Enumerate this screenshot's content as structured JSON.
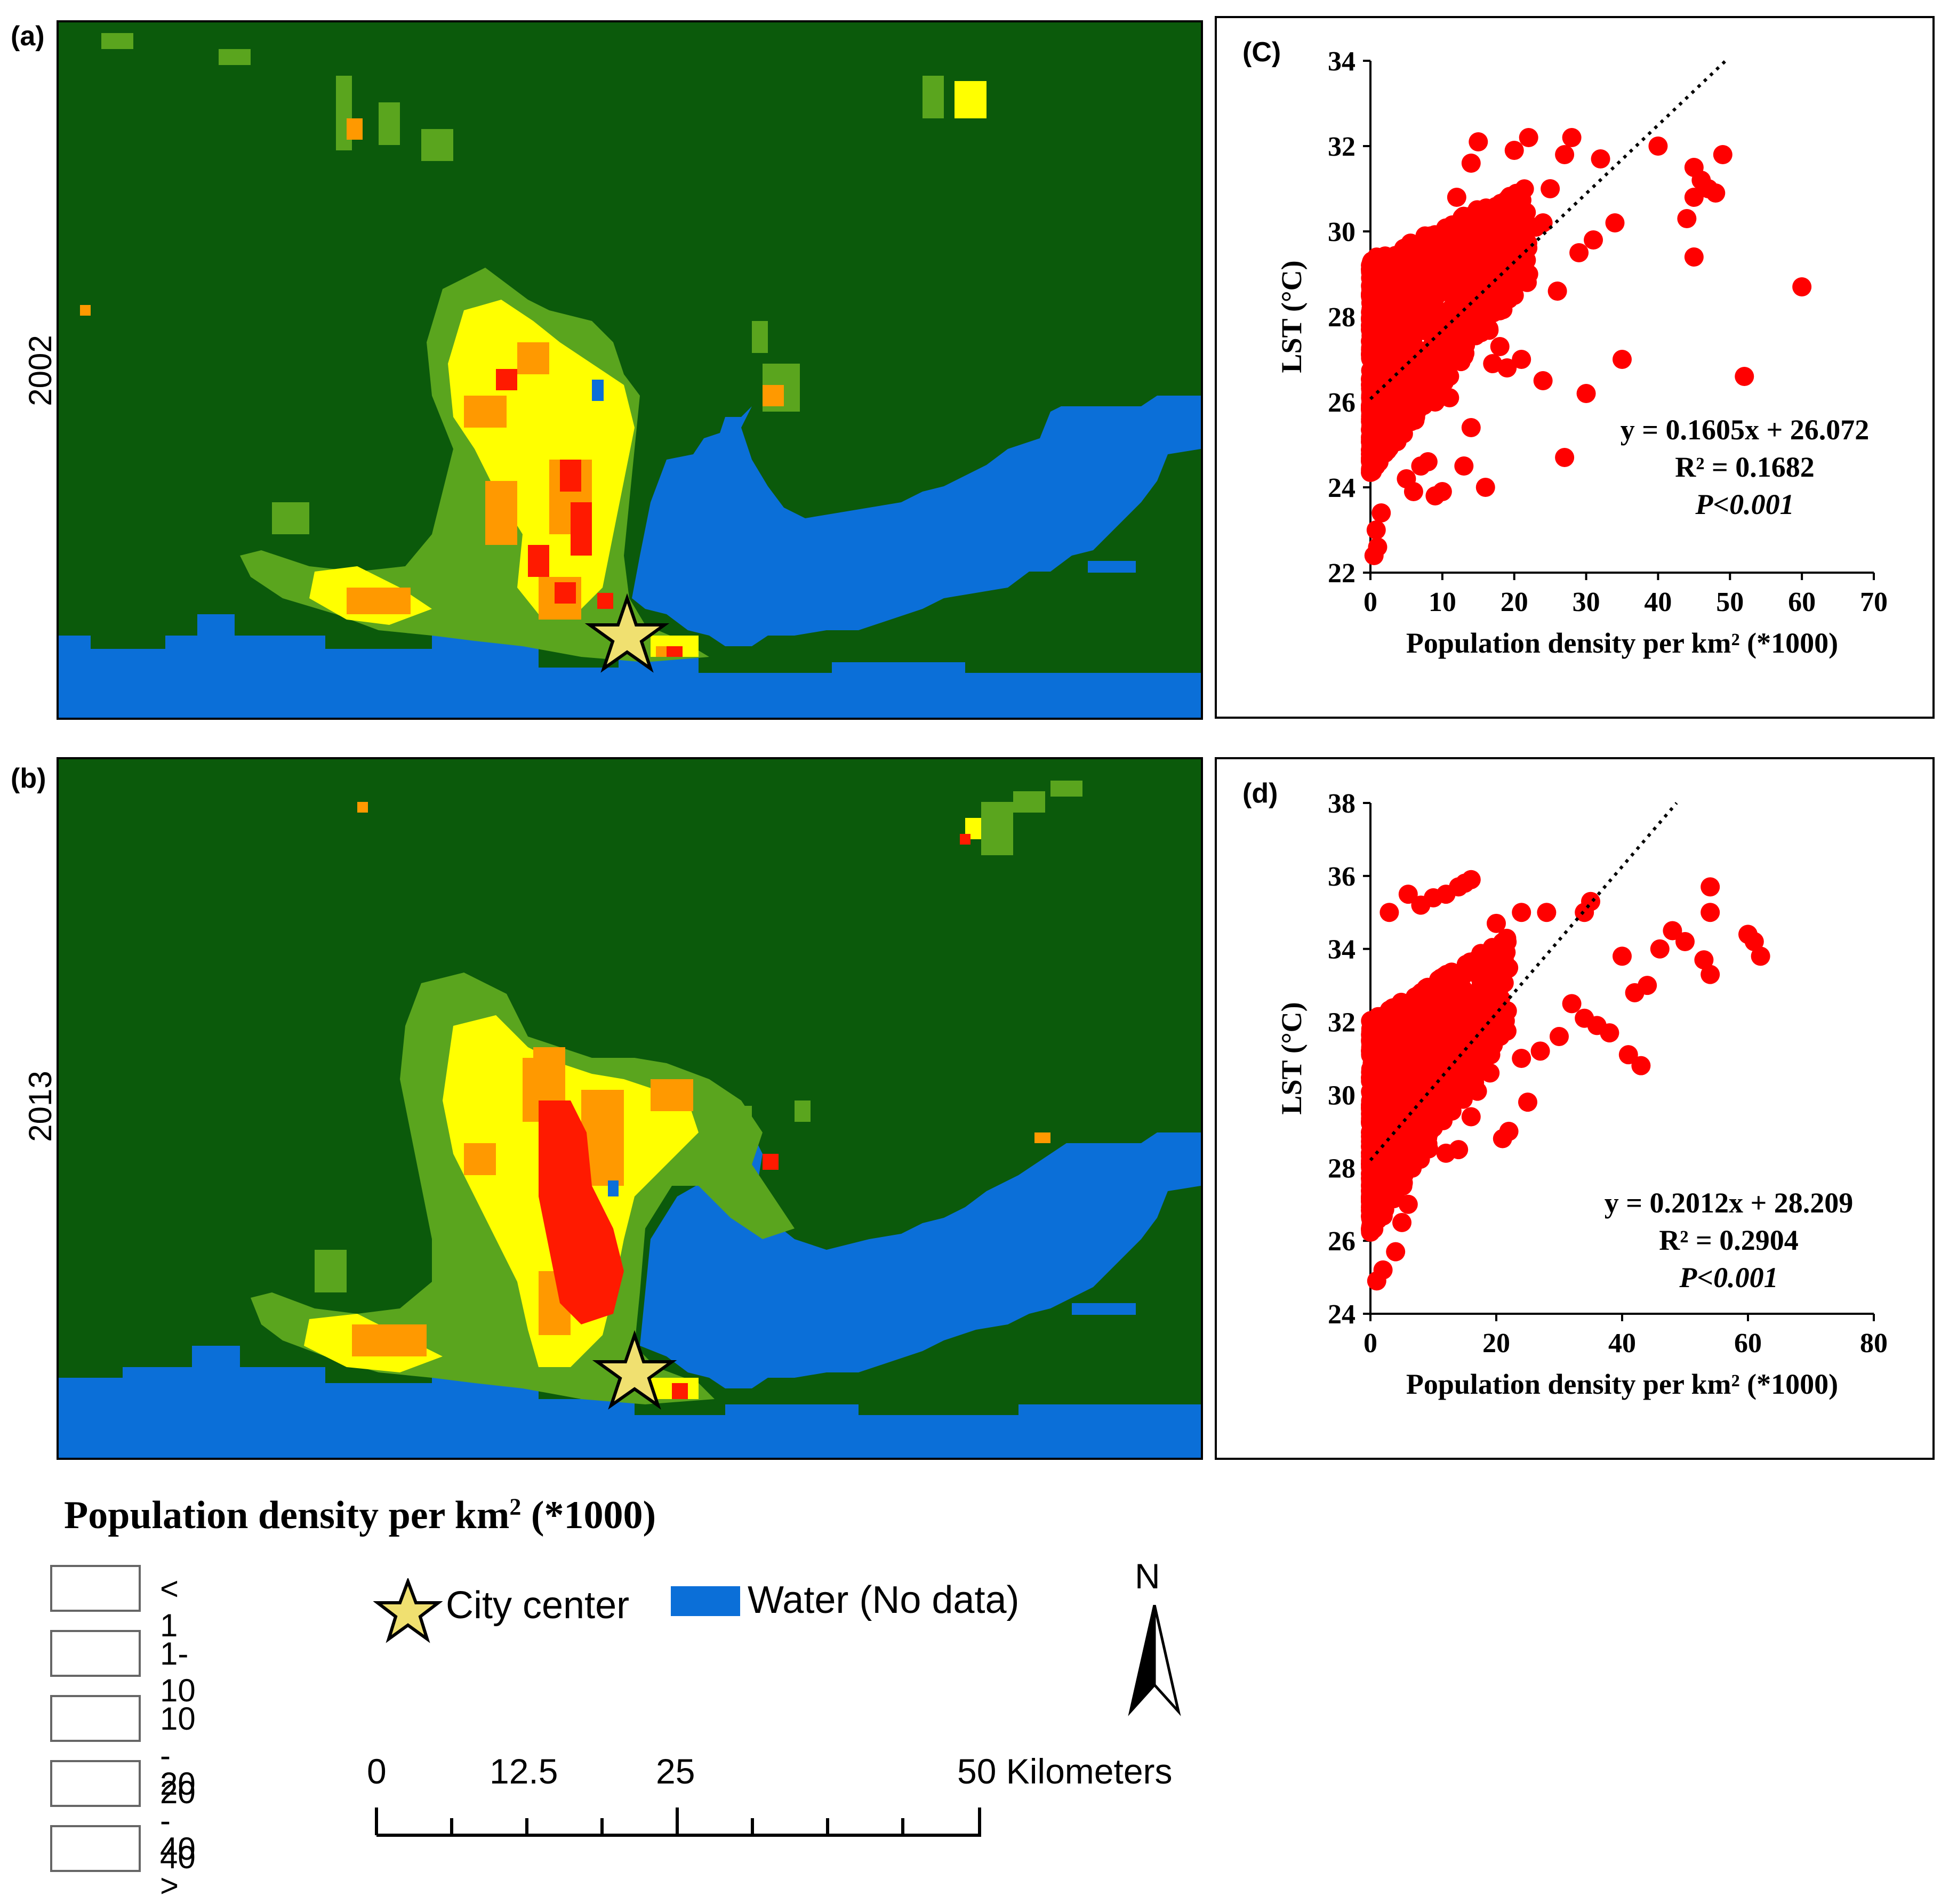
{
  "panels": {
    "a": {
      "label": "(a)",
      "year": "2002"
    },
    "b": {
      "label": "(b)",
      "year": "2013"
    },
    "c": {
      "label": "(C)"
    },
    "d": {
      "label": "(d)"
    }
  },
  "colors": {
    "lt1": "#0b5a0b",
    "c1_10": "#5aa51e",
    "c10_20": "#ffff00",
    "c20_40": "#ff9900",
    "c40": "#ff1a00",
    "water": "#0b6fd8",
    "star": "#f0e070",
    "point": "#ff0000"
  },
  "legend": {
    "title": "Population density per km",
    "title_sup": "2",
    "title_suffix": " (*1000)",
    "classes": [
      {
        "label": "< 1",
        "color": "#0b5a0b"
      },
      {
        "label": "1-10",
        "color": "#5aa51e"
      },
      {
        "label": "10 - 20",
        "color": "#ffff00"
      },
      {
        "label": "20 - 40",
        "color": "#ff9900"
      },
      {
        "label": "40 >",
        "color": "#ff1a00"
      }
    ],
    "city_center": "City center",
    "water": "Water (No data)",
    "north": "N",
    "scale_ticks": [
      "0",
      "12.5",
      "25",
      "50 Kilometers"
    ]
  },
  "chart_data": [
    {
      "type": "scatter",
      "panel": "c",
      "xlabel": "Population density per km² (*1000)",
      "ylabel": "LST (°C)",
      "xlim": [
        0,
        70
      ],
      "ylim": [
        22,
        34
      ],
      "xticks": [
        "0",
        "10",
        "20",
        "30",
        "40",
        "50",
        "60",
        "70"
      ],
      "yticks": [
        "22",
        "24",
        "26",
        "28",
        "30",
        "32",
        "34"
      ],
      "trendline": {
        "slope": 0.1605,
        "intercept": 26.072
      },
      "equation": "y = 0.1605x + 26.072",
      "r2": "R² = 0.1682",
      "p": "P<0.001",
      "points": [
        [
          40,
          32.0
        ],
        [
          45,
          31.5
        ],
        [
          46,
          31.2
        ],
        [
          47,
          31.0
        ],
        [
          45,
          30.8
        ],
        [
          44,
          30.3
        ],
        [
          48,
          30.9
        ],
        [
          49,
          31.8
        ],
        [
          45,
          29.4
        ],
        [
          60,
          28.7
        ],
        [
          52,
          26.6
        ],
        [
          35,
          27.0
        ],
        [
          30,
          26.2
        ],
        [
          27,
          24.7
        ],
        [
          24,
          26.5
        ],
        [
          16,
          24.0
        ],
        [
          14,
          25.4
        ],
        [
          13,
          24.5
        ],
        [
          10,
          23.9
        ],
        [
          9,
          23.8
        ],
        [
          8,
          24.6
        ],
        [
          7,
          24.5
        ],
        [
          6,
          23.9
        ],
        [
          5,
          24.2
        ],
        [
          28,
          32.2
        ],
        [
          27,
          31.8
        ],
        [
          29,
          29.5
        ],
        [
          31,
          29.8
        ],
        [
          32,
          31.7
        ],
        [
          34,
          30.2
        ],
        [
          25,
          31.0
        ],
        [
          24,
          30.2
        ],
        [
          22,
          29.0
        ],
        [
          20,
          28.5
        ],
        [
          18,
          27.3
        ],
        [
          17,
          26.9
        ],
        [
          19,
          26.8
        ],
        [
          15,
          32.1
        ],
        [
          14,
          31.6
        ],
        [
          12,
          30.8
        ],
        [
          20,
          31.9
        ],
        [
          22,
          32.2
        ],
        [
          23,
          30.1
        ],
        [
          26,
          28.6
        ],
        [
          21,
          27.0
        ],
        [
          18,
          29.3
        ],
        [
          16,
          27.8
        ],
        [
          11,
          26.1
        ],
        [
          12,
          27.0
        ],
        [
          9,
          26.0
        ],
        [
          3,
          25.3
        ],
        [
          2,
          24.8
        ],
        [
          1.5,
          23.4
        ],
        [
          1,
          22.6
        ],
        [
          0.5,
          22.4
        ],
        [
          0.8,
          23.0
        ]
      ]
    },
    {
      "type": "scatter",
      "panel": "d",
      "xlabel": "Population density per km² (*1000)",
      "ylabel": "LST (°C)",
      "xlim": [
        0,
        80
      ],
      "ylim": [
        24,
        38
      ],
      "xticks": [
        "0",
        "20",
        "40",
        "60",
        "80"
      ],
      "yticks": [
        "24",
        "26",
        "28",
        "30",
        "32",
        "34",
        "36",
        "38"
      ],
      "trendline": {
        "slope": 0.2012,
        "intercept": 28.209
      },
      "equation": "y = 0.2012x + 28.209",
      "r2": "R² = 0.2904",
      "p": "P<0.001",
      "points": [
        [
          54,
          35.7
        ],
        [
          54,
          35.0
        ],
        [
          60,
          34.4
        ],
        [
          61,
          34.2
        ],
        [
          62,
          33.8
        ],
        [
          53,
          33.7
        ],
        [
          54,
          33.3
        ],
        [
          50,
          34.2
        ],
        [
          48,
          34.5
        ],
        [
          46,
          34.0
        ],
        [
          43,
          30.8
        ],
        [
          41,
          31.1
        ],
        [
          38,
          31.7
        ],
        [
          36,
          31.9
        ],
        [
          34,
          32.1
        ],
        [
          32,
          32.5
        ],
        [
          30,
          31.6
        ],
        [
          27,
          31.2
        ],
        [
          24,
          31.0
        ],
        [
          22,
          29.0
        ],
        [
          21,
          28.8
        ],
        [
          25,
          29.8
        ],
        [
          19,
          30.6
        ],
        [
          17,
          30.1
        ],
        [
          16,
          29.4
        ],
        [
          14,
          28.5
        ],
        [
          12,
          28.4
        ],
        [
          10,
          29.1
        ],
        [
          8,
          28.7
        ],
        [
          6,
          27.0
        ],
        [
          5,
          26.5
        ],
        [
          4,
          25.7
        ],
        [
          2,
          25.2
        ],
        [
          1,
          24.9
        ],
        [
          35,
          35.3
        ],
        [
          34,
          35.0
        ],
        [
          28,
          35.0
        ],
        [
          24,
          35.0
        ],
        [
          20,
          34.7
        ],
        [
          16,
          35.9
        ],
        [
          15,
          35.8
        ],
        [
          14,
          35.7
        ],
        [
          12,
          35.5
        ],
        [
          10,
          35.4
        ],
        [
          8,
          35.2
        ],
        [
          6,
          35.5
        ],
        [
          3,
          35.0
        ],
        [
          40,
          33.8
        ],
        [
          44,
          33.0
        ],
        [
          42,
          32.8
        ]
      ]
    }
  ]
}
